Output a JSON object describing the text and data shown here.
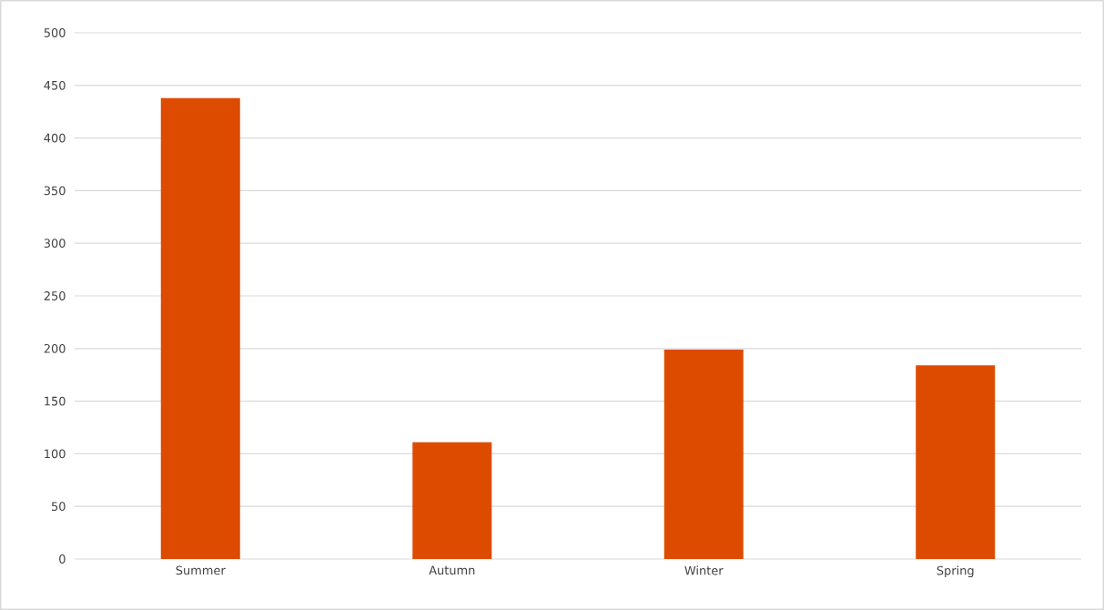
{
  "chart_data": {
    "type": "bar",
    "categories": [
      "Summer",
      "Autumn",
      "Winter",
      "Spring"
    ],
    "values": [
      438,
      111,
      199,
      184
    ],
    "color": "#dd4b00",
    "ylim": [
      0,
      500
    ],
    "yticks": [
      0,
      50,
      100,
      150,
      200,
      250,
      300,
      350,
      400,
      450,
      500
    ],
    "grid": "y"
  }
}
